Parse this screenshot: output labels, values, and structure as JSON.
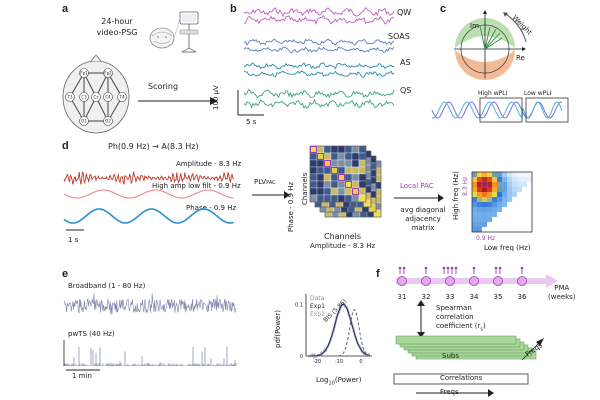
{
  "panels": {
    "a": "a",
    "b": "b",
    "c": "c",
    "d": "d",
    "e": "e",
    "f": "f"
  },
  "a": {
    "title_line1": "24-hour",
    "title_line2": "video-PSG",
    "scoring": "Scoring",
    "electrodes": [
      "Fp1",
      "Fp2",
      "T3",
      "C3",
      "Cz",
      "C4",
      "T4",
      "O1",
      "O2"
    ]
  },
  "b": {
    "states": [
      "QW",
      "SOAS",
      "AS",
      "QS"
    ],
    "scale_y": "100 µV",
    "scale_x": "5 s"
  },
  "c": {
    "im": "Im",
    "re": "Re",
    "weight": "Weight",
    "high_wpli": "High wPLI",
    "low_wpli": "Low wPLI"
  },
  "d": {
    "equation": "Ph(0.9 Hz) → A(8.3 Hz)",
    "amplitude": "Amplitude - 8.3 Hz",
    "high_amp": "High amp low filt - 0.9 Hz",
    "phase": "Phase - 0.9 Hz",
    "scale": "1 s",
    "plv": "PLV",
    "plv_sub": "PAC",
    "channels_x": "Channels",
    "channels_y": "Channels",
    "phase_axis": "Phase - 0.9 Hz",
    "amp_axis": "Amplitude - 8.3 Hz",
    "local_pac": "Local PAC",
    "avg_diag": [
      "avg diagonal",
      "adjacency",
      "matrix"
    ],
    "high_freq": "High freq (Hz)",
    "low_freq": "Low freq (Hz)",
    "marker_y": "8.3 Hz",
    "marker_x": "0.9 Hz"
  },
  "e": {
    "broadband": "Broadband (1 - 80 Hz)",
    "pwts": "pwTS (40 Hz)",
    "scale": "1 min",
    "legend": [
      "Data",
      "Exp1",
      "Exp2"
    ],
    "bis": "BIS (5.86)",
    "ylabel": "pdf(Power)",
    "xlabel": "Log",
    "xlabel_sub": "10",
    "xlabel_tail": "(Power)",
    "yticks": [
      "0.1",
      "0"
    ],
    "xticks": [
      "-20",
      "-10",
      "0"
    ]
  },
  "f": {
    "weeks": [
      "31",
      "32",
      "33",
      "34",
      "35",
      "36"
    ],
    "pma": "PMA",
    "pma_unit": "(weeks)",
    "spearman": [
      "Spearman",
      "correlation",
      "coefficient (r"
    ],
    "spearman_sub": "s",
    "spearman_close": ")",
    "subs": "Subs",
    "freqs_diag": "Freqs",
    "correlations": "Correlations",
    "freqs": "Freqs"
  },
  "colors": {
    "qw": "#c15fbf",
    "soas": "#5a7fc0",
    "as": "#2d8ba8",
    "qs": "#3aa57d",
    "red": "#c0392b",
    "pink": "#e8888a",
    "blue": "#2a8fd0",
    "purple": "#9b3fb0",
    "green": "#a8d89a"
  }
}
